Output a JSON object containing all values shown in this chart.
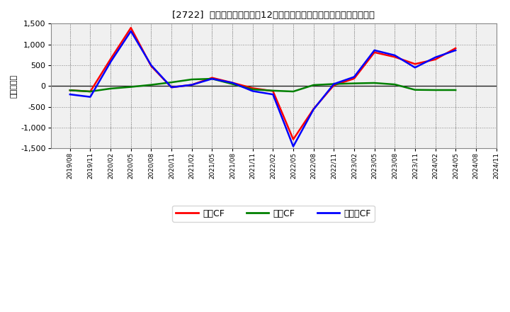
{
  "title": "[2722]  キャッシュフローの12か月移動合計の対前年同期増減額の推移",
  "ylabel": "（百万円）",
  "background_color": "#ffffff",
  "plot_bg_color": "#f5f5f5",
  "grid_color": "#aaaaaa",
  "ylim": [
    -1500,
    1500
  ],
  "yticks": [
    -1500,
    -1000,
    -500,
    0,
    500,
    1000,
    1500
  ],
  "x_labels": [
    "2019/08",
    "2019/11",
    "2020/02",
    "2020/05",
    "2020/08",
    "2020/11",
    "2021/02",
    "2021/05",
    "2021/08",
    "2021/11",
    "2022/02",
    "2022/05",
    "2022/08",
    "2022/11",
    "2023/02",
    "2023/05",
    "2023/08",
    "2023/11",
    "2024/02",
    "2024/05",
    "2024/08",
    "2024/11"
  ],
  "operating_cf": [
    -100,
    -130,
    650,
    1400,
    480,
    -30,
    30,
    200,
    80,
    -50,
    -120,
    -1280,
    -550,
    20,
    180,
    810,
    700,
    530,
    640,
    910,
    null,
    null
  ],
  "investing_cf": [
    -100,
    -130,
    -60,
    -20,
    30,
    90,
    160,
    175,
    50,
    -80,
    -110,
    -130,
    25,
    50,
    65,
    75,
    40,
    -90,
    -95,
    -95,
    null,
    null
  ],
  "free_cf": [
    -200,
    -260,
    580,
    1320,
    500,
    -30,
    30,
    175,
    80,
    -120,
    -200,
    -1450,
    -560,
    50,
    220,
    860,
    740,
    445,
    690,
    860,
    null,
    null
  ],
  "operating_color": "#ff0000",
  "investing_color": "#008000",
  "free_color": "#0000ff",
  "legend_labels": [
    "営業CF",
    "投資CF",
    "フリーCF"
  ]
}
